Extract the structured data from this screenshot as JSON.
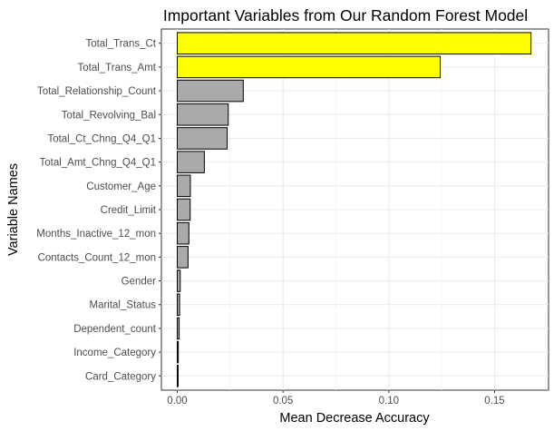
{
  "chart_data": {
    "type": "bar",
    "orientation": "horizontal",
    "title": "Important Variables from Our Random Forest Model",
    "xlabel": "Mean Decrease Accuracy",
    "ylabel": "Variable Names",
    "xlim": [
      -0.0075,
      0.1755
    ],
    "x_ticks": [
      0,
      0.05,
      0.1,
      0.15
    ],
    "x_tick_labels": [
      "0.00",
      "0.05",
      "0.10",
      "0.15"
    ],
    "grid": true,
    "legend": "none",
    "highlight_color": "#ffff00",
    "default_color": "#aaaaaa",
    "outline_color": "#000000",
    "categories": [
      "Total_Trans_Ct",
      "Total_Trans_Amt",
      "Total_Relationship_Count",
      "Total_Revolving_Bal",
      "Total_Ct_Chng_Q4_Q1",
      "Total_Amt_Chng_Q4_Q1",
      "Customer_Age",
      "Credit_Limit",
      "Months_Inactive_12_mon",
      "Contacts_Count_12_mon",
      "Gender",
      "Marital_Status",
      "Dependent_count",
      "Income_Category",
      "Card_Category"
    ],
    "values": [
      0.1672,
      0.1243,
      0.0312,
      0.0241,
      0.0236,
      0.0128,
      0.0062,
      0.0061,
      0.0055,
      0.0051,
      0.0014,
      0.0011,
      0.0009,
      0.0005,
      0.0004
    ],
    "highlighted": [
      true,
      true,
      false,
      false,
      false,
      false,
      false,
      false,
      false,
      false,
      false,
      false,
      false,
      false,
      false
    ]
  }
}
